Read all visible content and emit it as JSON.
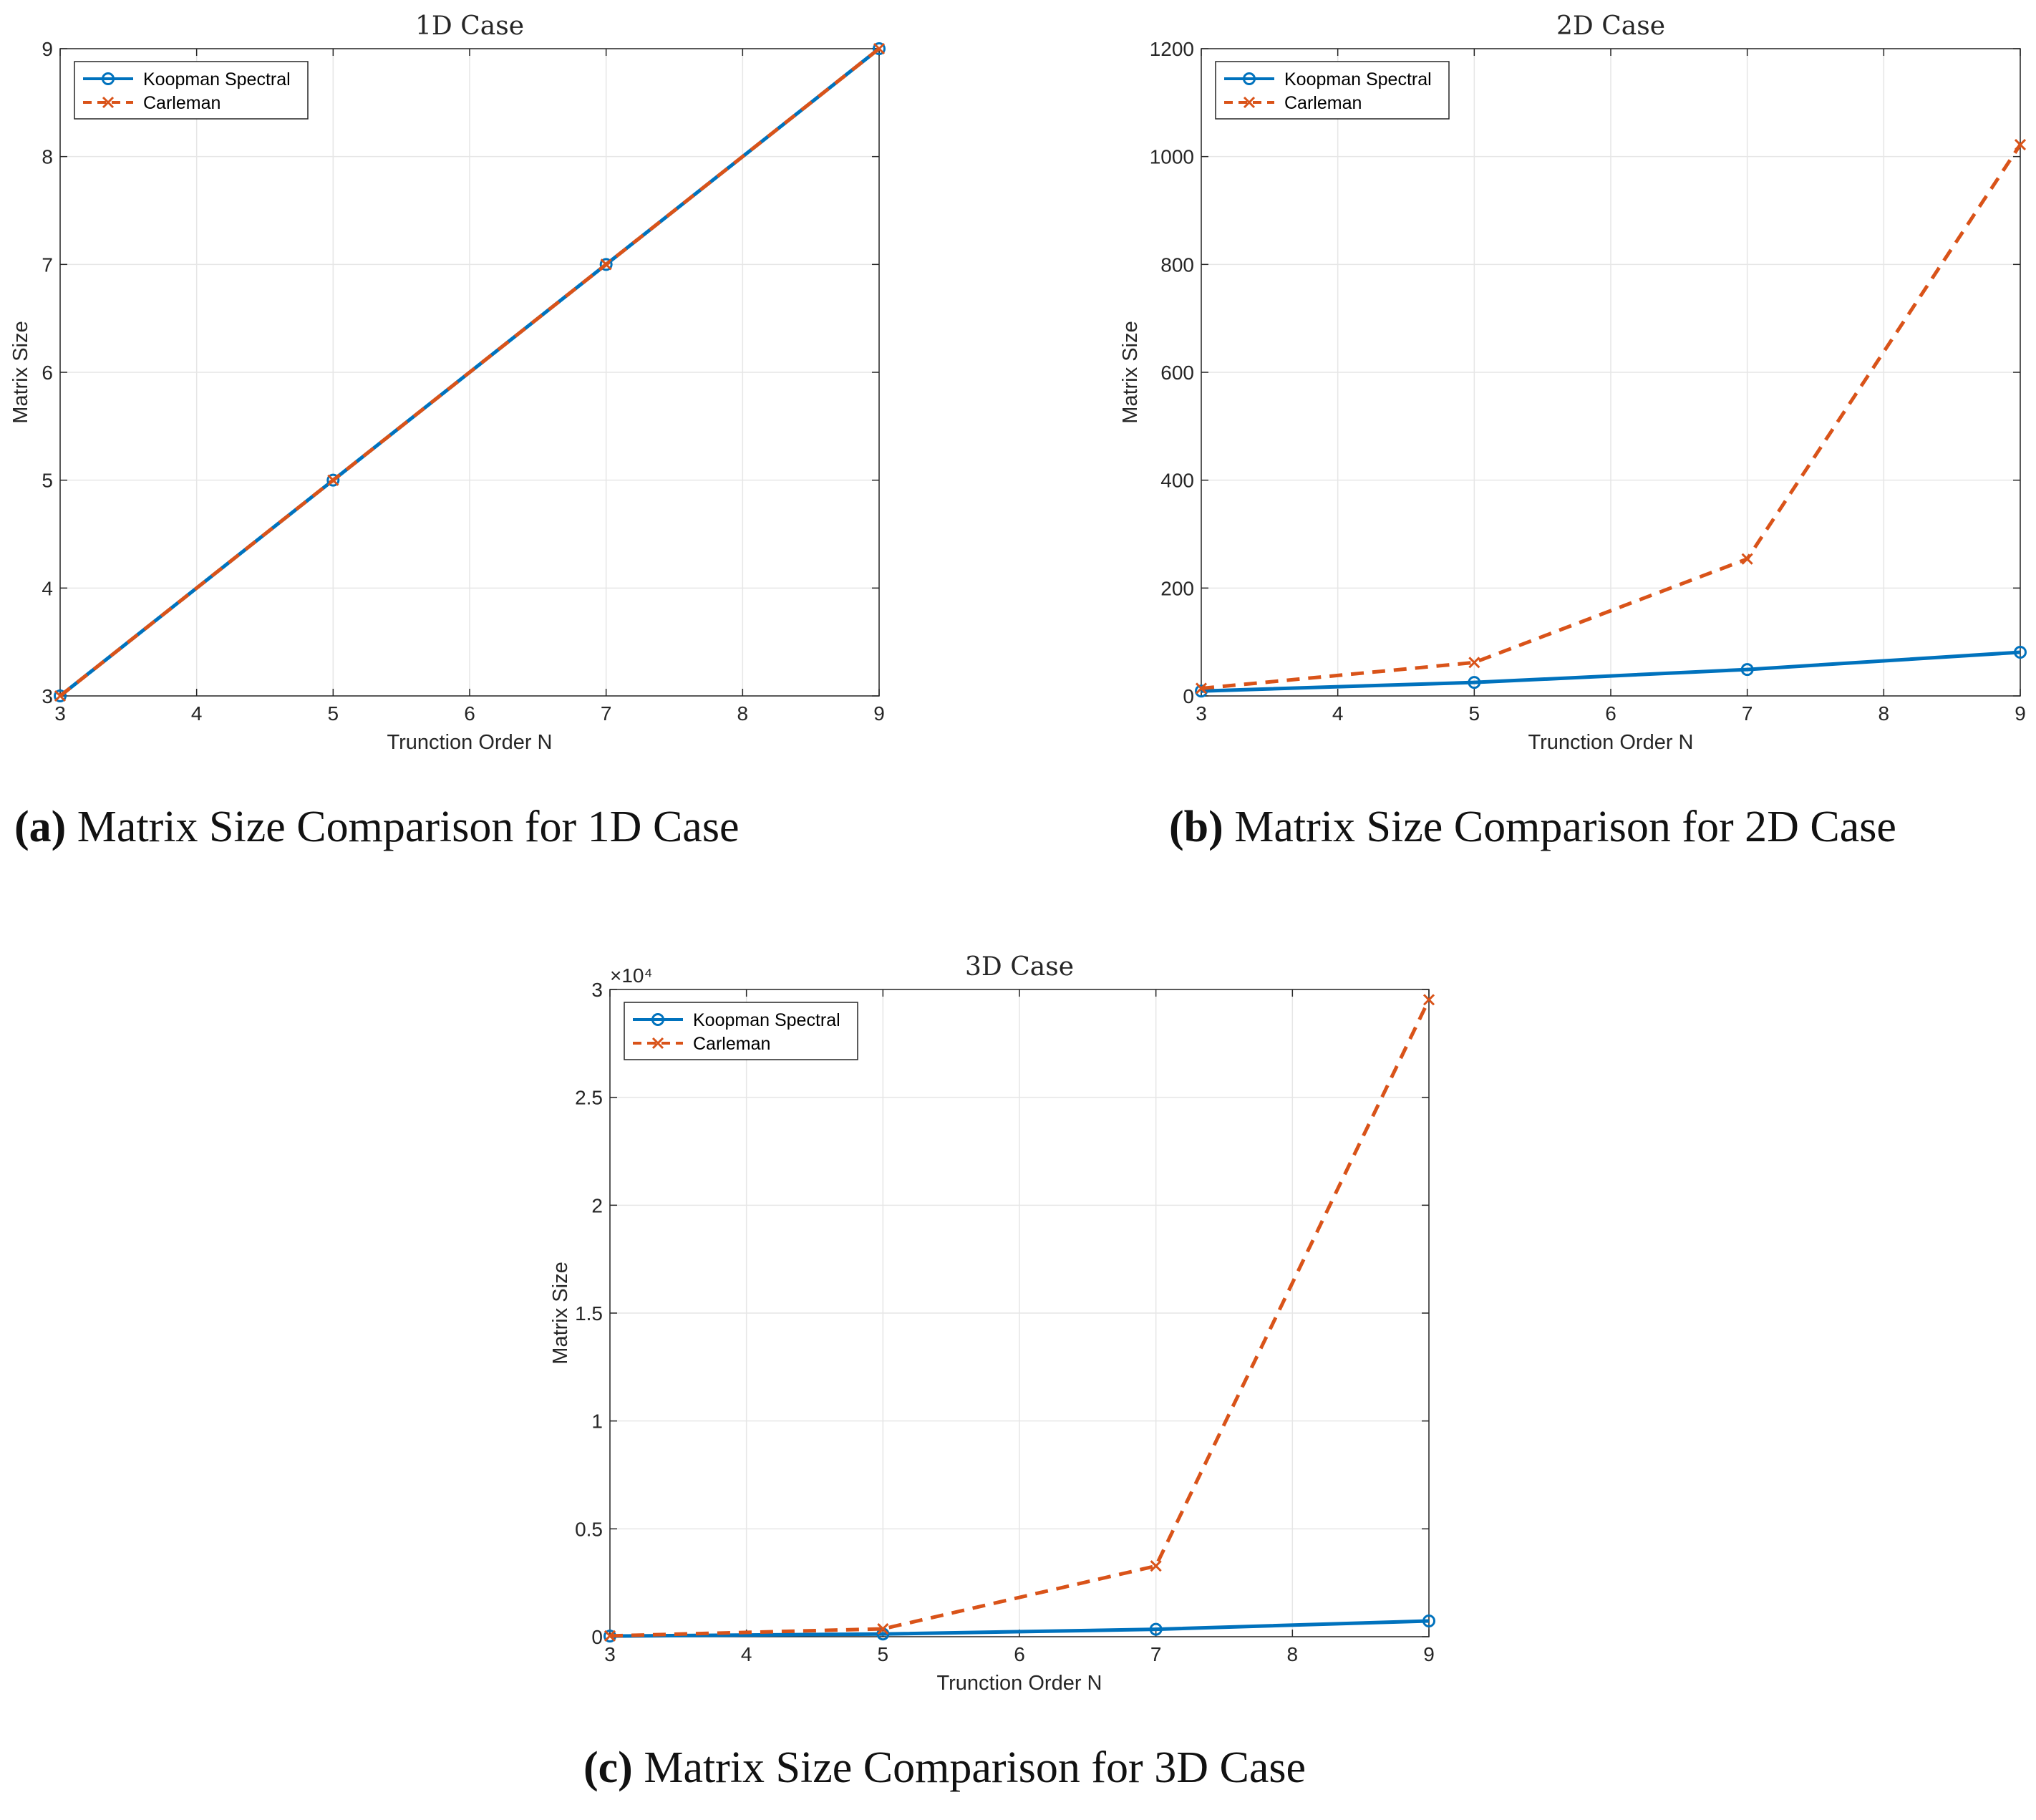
{
  "chart_data": [
    {
      "type": "line",
      "title": "1D Case",
      "xlabel": "Trunction Order N",
      "ylabel": "Matrix Size",
      "xlim": [
        3,
        9
      ],
      "ylim": [
        3,
        9
      ],
      "xticks": [
        3,
        4,
        5,
        6,
        7,
        8,
        9
      ],
      "yticks": [
        3,
        4,
        5,
        6,
        7,
        8,
        9
      ],
      "ytick_labels": [
        "3",
        "4",
        "5",
        "6",
        "7",
        "8",
        "9"
      ],
      "exponent_label": "",
      "grid": true,
      "legend": "top-left",
      "series": [
        {
          "name": "Koopman Spectral",
          "x": [
            3,
            5,
            7,
            9
          ],
          "values": [
            3,
            5,
            7,
            9
          ],
          "color": "#0072BD",
          "marker": "circle",
          "dash": "solid"
        },
        {
          "name": "Carleman",
          "x": [
            3,
            5,
            7,
            9
          ],
          "values": [
            3,
            5,
            7,
            9
          ],
          "color": "#D95319",
          "marker": "x",
          "dash": "dashed"
        }
      ]
    },
    {
      "type": "line",
      "title": "2D Case",
      "xlabel": "Trunction Order N",
      "ylabel": "Matrix Size",
      "xlim": [
        3,
        9
      ],
      "ylim": [
        0,
        1200
      ],
      "xticks": [
        3,
        4,
        5,
        6,
        7,
        8,
        9
      ],
      "yticks": [
        0,
        200,
        400,
        600,
        800,
        1000,
        1200
      ],
      "ytick_labels": [
        "0",
        "200",
        "400",
        "600",
        "800",
        "1000",
        "1200"
      ],
      "exponent_label": "",
      "grid": true,
      "legend": "top-left",
      "series": [
        {
          "name": "Koopman Spectral",
          "x": [
            3,
            5,
            7,
            9
          ],
          "values": [
            9,
            25,
            49,
            81
          ],
          "color": "#0072BD",
          "marker": "circle",
          "dash": "solid"
        },
        {
          "name": "Carleman",
          "x": [
            3,
            5,
            7,
            9
          ],
          "values": [
            14,
            62,
            254,
            1022
          ],
          "color": "#D95319",
          "marker": "x",
          "dash": "dashed"
        }
      ]
    },
    {
      "type": "line",
      "title": "3D Case",
      "xlabel": "Trunction Order N",
      "ylabel": "Matrix Size",
      "xlim": [
        3,
        9
      ],
      "ylim": [
        0,
        30000
      ],
      "xticks": [
        3,
        4,
        5,
        6,
        7,
        8,
        9
      ],
      "yticks": [
        0,
        5000,
        10000,
        15000,
        20000,
        25000,
        30000
      ],
      "ytick_labels": [
        "0",
        "0.5",
        "1",
        "1.5",
        "2",
        "2.5",
        "3"
      ],
      "exponent_label": "×10⁴",
      "grid": true,
      "legend": "top-left",
      "series": [
        {
          "name": "Koopman Spectral",
          "x": [
            3,
            5,
            7,
            9
          ],
          "values": [
            27,
            125,
            343,
            729
          ],
          "color": "#0072BD",
          "marker": "circle",
          "dash": "solid"
        },
        {
          "name": "Carleman",
          "x": [
            3,
            5,
            7,
            9
          ],
          "values": [
            39,
            363,
            3279,
            29523
          ],
          "color": "#D95319",
          "marker": "x",
          "dash": "dashed"
        }
      ]
    }
  ],
  "captions": [
    {
      "label": "(a)",
      "text": " Matrix Size Comparison for 1D Case"
    },
    {
      "label": "(b)",
      "text": " Matrix Size Comparison for 2D Case"
    },
    {
      "label": "(c)",
      "text": " Matrix Size Comparison for 3D Case"
    }
  ]
}
